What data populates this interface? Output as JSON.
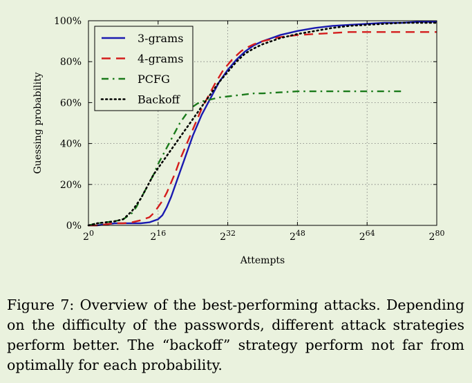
{
  "chart_data": {
    "type": "line",
    "xlabel": "Attempts",
    "ylabel": "Guessing probability",
    "x_scale": "log2",
    "xlim": [
      0,
      80
    ],
    "ylim": [
      0,
      100
    ],
    "x_ticks": [
      0,
      16,
      32,
      48,
      64,
      80
    ],
    "x_tick_base": "2",
    "y_ticks": [
      0,
      20,
      40,
      60,
      80,
      100
    ],
    "y_tick_labels": [
      "0%",
      "20%",
      "40%",
      "60%",
      "80%",
      "100%"
    ],
    "grid": true,
    "legend_position": "top-left",
    "series": [
      {
        "name": "3-grams",
        "color": "#1a1ab0",
        "style": "solid",
        "x": [
          0,
          2,
          4,
          6,
          8,
          10,
          12,
          14,
          16,
          17,
          18,
          19,
          20,
          21,
          22,
          23,
          24,
          25,
          26,
          27,
          28,
          29,
          30,
          31,
          32,
          33,
          34,
          35,
          36,
          38,
          40,
          42,
          44,
          46,
          48,
          52,
          56,
          60,
          64,
          68,
          72,
          76,
          80
        ],
        "y": [
          0,
          0,
          0.5,
          1,
          1,
          1,
          1,
          1.5,
          3,
          5,
          9,
          14,
          20,
          26,
          32,
          38,
          44,
          49,
          54,
          58,
          62,
          66,
          70,
          73,
          76,
          78.5,
          81,
          83,
          85,
          88,
          90,
          91.5,
          93,
          94,
          95,
          96.5,
          97.5,
          98,
          98.5,
          99,
          99,
          99.5,
          99.5
        ]
      },
      {
        "name": "4-grams",
        "color": "#d41c1c",
        "style": "dashed",
        "x": [
          0,
          2,
          4,
          6,
          8,
          10,
          12,
          14,
          15,
          16,
          17,
          18,
          19,
          20,
          21,
          22,
          23,
          24,
          25,
          26,
          27,
          28,
          29,
          30,
          31,
          32,
          33,
          34,
          35,
          36,
          38,
          40,
          42,
          44,
          46,
          48,
          52,
          56,
          60,
          64,
          68,
          72,
          76,
          80
        ],
        "y": [
          0,
          0,
          0.5,
          1,
          1,
          1.5,
          2.5,
          4,
          6,
          9,
          12,
          16,
          21,
          26,
          32,
          37,
          42,
          47,
          52,
          57,
          61,
          65,
          69,
          72.5,
          76,
          78.5,
          81,
          83,
          85,
          86.5,
          88.5,
          90,
          91,
          92,
          92.5,
          93,
          93.5,
          94,
          94.5,
          94.5,
          94.5,
          94.5,
          94.5,
          94.5
        ]
      },
      {
        "name": "PCFG",
        "color": "#1a7a1a",
        "style": "dashdot",
        "x": [
          0,
          2,
          4,
          6,
          8,
          10,
          11,
          12,
          13,
          14,
          15,
          16,
          17,
          18,
          19,
          20,
          21,
          22,
          23,
          24,
          25,
          26,
          27,
          28,
          29,
          30,
          32,
          34,
          36,
          38,
          40,
          44,
          48,
          52,
          56,
          60,
          64,
          68,
          72
        ],
        "y": [
          0,
          1,
          1.5,
          2,
          3,
          6,
          9,
          13,
          17,
          21,
          25,
          30,
          34,
          38,
          42,
          46,
          50,
          53,
          56,
          58,
          59.5,
          60.5,
          61,
          61.5,
          62,
          62.5,
          63,
          63.5,
          64,
          64.5,
          64.5,
          65,
          65.5,
          65.5,
          65.5,
          65.5,
          65.5,
          65.5,
          65.5
        ]
      },
      {
        "name": "Backoff",
        "color": "#000000",
        "style": "dotted",
        "x": [
          0,
          2,
          4,
          6,
          8,
          9,
          10,
          11,
          12,
          13,
          14,
          15,
          16,
          17,
          18,
          19,
          20,
          21,
          22,
          23,
          24,
          25,
          26,
          27,
          28,
          29,
          30,
          31,
          32,
          33,
          34,
          35,
          36,
          38,
          40,
          42,
          44,
          46,
          48,
          52,
          56,
          60,
          64,
          68,
          72,
          76,
          80
        ],
        "y": [
          0,
          1,
          1.5,
          2,
          3,
          5,
          7,
          10,
          13,
          17,
          21,
          25,
          28,
          31,
          34,
          37,
          40,
          43,
          46,
          49,
          52,
          55,
          58,
          61,
          64,
          67,
          70,
          72.5,
          75,
          77.5,
          80,
          82,
          84,
          86.5,
          88.5,
          90,
          91.5,
          92.5,
          93.5,
          95,
          96.5,
          97.5,
          98,
          98.5,
          99,
          99,
          99
        ]
      }
    ]
  },
  "caption": "Figure 7: Overview of the best-performing attacks. Depending on the difficulty of the passwords, different attack strategies perform better. The “backoff” strategy perform not far from optimally for each probability."
}
